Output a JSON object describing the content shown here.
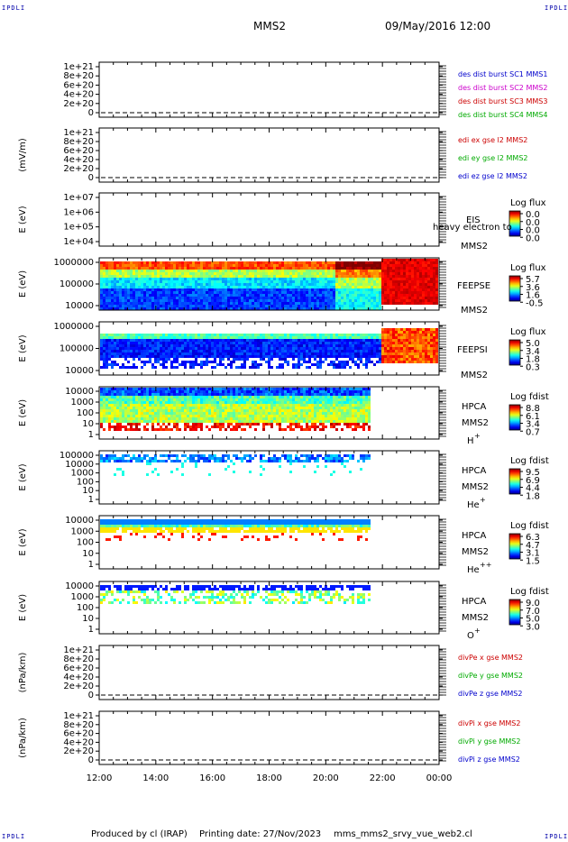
{
  "corner_label": "IPDLI",
  "header": {
    "spacecraft": "MMS2",
    "datetime": "09/May/2016 12:00"
  },
  "footer": {
    "produced_by": "Produced by cl (IRAP)",
    "printing_date": "Printing date: 27/Nov/2023",
    "filename": "mms_mms2_srvy_vue_web2.cl"
  },
  "time_axis": {
    "ticks": [
      "12:00",
      "14:00",
      "16:00",
      "18:00",
      "20:00",
      "22:00",
      "00:00"
    ]
  },
  "chart_data": [
    {
      "type": "line",
      "ylabel": "",
      "ylim": [
        0,
        1e+21
      ],
      "yticks": [
        "1e+21",
        "8e+20",
        "6e+20",
        "4e+20",
        "2e+20",
        "0"
      ],
      "series": [
        {
          "name": "des dist burst SC1 MMS1",
          "color": "#0000cc",
          "values": []
        },
        {
          "name": "des dist burst SC2 MMS2",
          "color": "#cc00cc",
          "values": []
        },
        {
          "name": "des dist burst SC3 MMS3",
          "color": "#cc0000",
          "values": []
        },
        {
          "name": "des dist burst SC4 MMS4",
          "color": "#00aa00",
          "values": []
        }
      ]
    },
    {
      "type": "line",
      "ylabel": "(mV/m)",
      "ylim": [
        0,
        1e+21
      ],
      "yticks": [
        "1e+21",
        "8e+20",
        "6e+20",
        "4e+20",
        "2e+20",
        "0"
      ],
      "series": [
        {
          "name": "edi ex gse l2 MMS2",
          "color": "#cc0000",
          "values": []
        },
        {
          "name": "edi ey gse l2 MMS2",
          "color": "#00aa00",
          "values": []
        },
        {
          "name": "edi ez gse l2 MMS2",
          "color": "#0000cc",
          "values": []
        }
      ]
    },
    {
      "type": "heatmap",
      "ylabel": "E (eV)",
      "scale": "log",
      "ylim": [
        10000.0,
        10000000.0
      ],
      "yticks": [
        "1e+07",
        "1e+06",
        "1e+05",
        "1e+04"
      ],
      "instrument": [
        "EIS",
        "heavy electron to",
        "MMS2"
      ],
      "colorbar": {
        "title": "Log flux",
        "ticks": [
          "0.0",
          "0.0",
          "0.0",
          "0.0"
        ]
      },
      "values": []
    },
    {
      "type": "heatmap",
      "ylabel": "E (eV)",
      "scale": "log",
      "ylim": [
        10000.0,
        1000000.0
      ],
      "yticks": [
        "1000000",
        "100000",
        "10000"
      ],
      "instrument": [
        "FEEPSE",
        "MMS2"
      ],
      "colorbar": {
        "title": "Log flux",
        "ticks": [
          "5.7",
          "3.6",
          "1.6",
          "-0.5"
        ]
      }
    },
    {
      "type": "heatmap",
      "ylabel": "E (eV)",
      "scale": "log",
      "ylim": [
        10000.0,
        1000000.0
      ],
      "yticks": [
        "1000000",
        "100000",
        "10000"
      ],
      "instrument": [
        "FEEPSI",
        "MMS2"
      ],
      "colorbar": {
        "title": "Log flux",
        "ticks": [
          "5.0",
          "3.4",
          "1.8",
          "0.3"
        ]
      }
    },
    {
      "type": "heatmap",
      "ylabel": "E (eV)",
      "scale": "log",
      "ylim": [
        1,
        10000.0
      ],
      "yticks": [
        "10000",
        "1000",
        "100",
        "10",
        "1"
      ],
      "instrument": [
        "HPCA",
        "MMS2",
        "H",
        "+"
      ],
      "colorbar": {
        "title": "Log fdist",
        "ticks": [
          "8.8",
          "6.1",
          "3.4",
          "0.7"
        ]
      }
    },
    {
      "type": "heatmap",
      "ylabel": "E (eV)",
      "scale": "log",
      "ylim": [
        1,
        100000.0
      ],
      "yticks": [
        "100000",
        "10000",
        "1000",
        "100",
        "10",
        "1"
      ],
      "instrument": [
        "HPCA",
        "MMS2",
        "He",
        "+"
      ],
      "colorbar": {
        "title": "Log fdist",
        "ticks": [
          "9.5",
          "6.9",
          "4.4",
          "1.8"
        ]
      }
    },
    {
      "type": "heatmap",
      "ylabel": "E (eV)",
      "scale": "log",
      "ylim": [
        1,
        10000.0
      ],
      "yticks": [
        "10000",
        "1000",
        "100",
        "10",
        "1"
      ],
      "instrument": [
        "HPCA",
        "MMS2",
        "He",
        "++"
      ],
      "colorbar": {
        "title": "Log fdist",
        "ticks": [
          "6.3",
          "4.7",
          "3.1",
          "1.5"
        ]
      }
    },
    {
      "type": "heatmap",
      "ylabel": "E (eV)",
      "scale": "log",
      "ylim": [
        1,
        10000.0
      ],
      "yticks": [
        "10000",
        "1000",
        "100",
        "10",
        "1"
      ],
      "instrument": [
        "HPCA",
        "MMS2",
        "O",
        "+"
      ],
      "colorbar": {
        "title": "Log fdist",
        "ticks": [
          "9.0",
          "7.0",
          "5.0",
          "3.0"
        ]
      }
    },
    {
      "type": "line",
      "ylabel": "(nPa/km)",
      "ylim": [
        0,
        1e+21
      ],
      "yticks": [
        "1e+21",
        "8e+20",
        "6e+20",
        "4e+20",
        "2e+20",
        "0"
      ],
      "series": [
        {
          "name": "divPe x gse MMS2",
          "color": "#cc0000",
          "values": []
        },
        {
          "name": "divPe y gse MMS2",
          "color": "#00aa00",
          "values": []
        },
        {
          "name": "divPe z gse MMS2",
          "color": "#0000cc",
          "values": []
        }
      ]
    },
    {
      "type": "line",
      "ylabel": "(nPa/km)",
      "ylim": [
        0,
        1e+21
      ],
      "yticks": [
        "1e+21",
        "8e+20",
        "6e+20",
        "4e+20",
        "2e+20",
        "0"
      ],
      "series": [
        {
          "name": "divPi x gse MMS2",
          "color": "#cc0000",
          "values": []
        },
        {
          "name": "divPi y gse MMS2",
          "color": "#00aa00",
          "values": []
        },
        {
          "name": "divPi z gse MMS2",
          "color": "#0000cc",
          "values": []
        }
      ]
    }
  ]
}
